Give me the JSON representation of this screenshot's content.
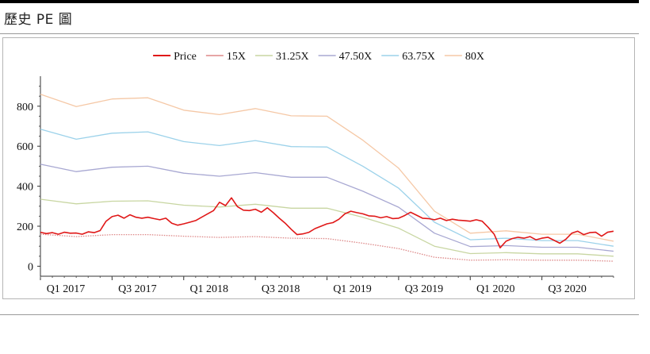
{
  "page": {
    "section_title": "歷史 PE 圖"
  },
  "chart_data": {
    "type": "line",
    "title": "",
    "xlabel": "",
    "ylabel": "",
    "x_range": [
      0,
      48
    ],
    "ylim": [
      -50,
      950
    ],
    "y_ticks": [
      0,
      200,
      400,
      600,
      800
    ],
    "x_ticks": [
      {
        "label": "Q1 2017",
        "x": 0
      },
      {
        "label": "Q3 2017",
        "x": 6
      },
      {
        "label": "Q1 2018",
        "x": 12
      },
      {
        "label": "Q3 2018",
        "x": 18
      },
      {
        "label": "Q1 2019",
        "x": 24
      },
      {
        "label": "Q3 2019",
        "x": 30
      },
      {
        "label": "Q1 2020",
        "x": 36
      },
      {
        "label": "Q3 2020",
        "x": 42
      }
    ],
    "legend_position": "top-center",
    "series": [
      {
        "name": "Price",
        "color": "#e01818",
        "style": "price",
        "points": [
          [
            0,
            170
          ],
          [
            0.5,
            163
          ],
          [
            1,
            168
          ],
          [
            1.5,
            160
          ],
          [
            2,
            170
          ],
          [
            2.5,
            165
          ],
          [
            3,
            166
          ],
          [
            3.5,
            160
          ],
          [
            4,
            172
          ],
          [
            4.5,
            168
          ],
          [
            5,
            178
          ],
          [
            5.5,
            225
          ],
          [
            6,
            248
          ],
          [
            6.5,
            255
          ],
          [
            7,
            240
          ],
          [
            7.5,
            257
          ],
          [
            8,
            245
          ],
          [
            8.5,
            240
          ],
          [
            9,
            245
          ],
          [
            9.5,
            238
          ],
          [
            10,
            232
          ],
          [
            10.5,
            240
          ],
          [
            11,
            215
          ],
          [
            11.5,
            205
          ],
          [
            12,
            212
          ],
          [
            12.5,
            220
          ],
          [
            13,
            228
          ],
          [
            13.5,
            245
          ],
          [
            14,
            262
          ],
          [
            14.5,
            278
          ],
          [
            15,
            320
          ],
          [
            15.5,
            303
          ],
          [
            16,
            342
          ],
          [
            16.5,
            298
          ],
          [
            17,
            280
          ],
          [
            17.5,
            278
          ],
          [
            18,
            285
          ],
          [
            18.5,
            270
          ],
          [
            19,
            292
          ],
          [
            19.5,
            268
          ],
          [
            20,
            240
          ],
          [
            20.5,
            215
          ],
          [
            21,
            185
          ],
          [
            21.5,
            158
          ],
          [
            22,
            162
          ],
          [
            22.5,
            170
          ],
          [
            23,
            188
          ],
          [
            23.5,
            200
          ],
          [
            24,
            212
          ],
          [
            24.5,
            218
          ],
          [
            25,
            235
          ],
          [
            25.5,
            262
          ],
          [
            26,
            275
          ],
          [
            26.5,
            268
          ],
          [
            27,
            262
          ],
          [
            27.5,
            252
          ],
          [
            28,
            250
          ],
          [
            28.5,
            242
          ],
          [
            29,
            248
          ],
          [
            29.5,
            238
          ],
          [
            30,
            240
          ],
          [
            30.5,
            253
          ],
          [
            31,
            270
          ],
          [
            31.5,
            255
          ],
          [
            32,
            240
          ],
          [
            32.5,
            238
          ],
          [
            33,
            232
          ],
          [
            33.5,
            240
          ],
          [
            34,
            228
          ],
          [
            34.5,
            235
          ],
          [
            35,
            230
          ],
          [
            35.5,
            228
          ],
          [
            36,
            225
          ],
          [
            36.5,
            232
          ],
          [
            37,
            225
          ],
          [
            37.5,
            195
          ],
          [
            38,
            160
          ],
          [
            38.5,
            92
          ],
          [
            39,
            125
          ],
          [
            39.5,
            138
          ],
          [
            40,
            145
          ],
          [
            40.5,
            140
          ],
          [
            41,
            148
          ],
          [
            41.5,
            132
          ],
          [
            42,
            140
          ],
          [
            42.5,
            145
          ],
          [
            43,
            130
          ],
          [
            43.5,
            115
          ],
          [
            44,
            135
          ],
          [
            44.5,
            165
          ],
          [
            45,
            175
          ],
          [
            45.5,
            158
          ],
          [
            46,
            168
          ],
          [
            46.5,
            170
          ],
          [
            47,
            150
          ],
          [
            47.5,
            170
          ],
          [
            48,
            175
          ]
        ]
      },
      {
        "name": "15X",
        "color": "#dd8888",
        "style": "dotted",
        "points": [
          [
            0,
            160
          ],
          [
            3,
            148
          ],
          [
            6,
            158
          ],
          [
            9,
            158
          ],
          [
            12,
            150
          ],
          [
            15,
            144
          ],
          [
            18,
            148
          ],
          [
            21,
            140
          ],
          [
            24,
            138
          ],
          [
            27,
            115
          ],
          [
            30,
            88
          ],
          [
            33,
            45
          ],
          [
            36,
            30
          ],
          [
            39,
            32
          ],
          [
            42,
            30
          ],
          [
            45,
            30
          ],
          [
            48,
            25
          ]
        ]
      },
      {
        "name": "31.25X",
        "color": "#c8d6a2",
        "style": "solid",
        "points": [
          [
            0,
            335
          ],
          [
            3,
            312
          ],
          [
            6,
            325
          ],
          [
            9,
            327
          ],
          [
            12,
            305
          ],
          [
            15,
            296
          ],
          [
            18,
            310
          ],
          [
            21,
            290
          ],
          [
            24,
            290
          ],
          [
            27,
            245
          ],
          [
            30,
            190
          ],
          [
            33,
            100
          ],
          [
            36,
            63
          ],
          [
            39,
            68
          ],
          [
            42,
            62
          ],
          [
            45,
            62
          ],
          [
            48,
            50
          ]
        ]
      },
      {
        "name": "47.50X",
        "color": "#a8a8d2",
        "style": "solid",
        "points": [
          [
            0,
            510
          ],
          [
            3,
            473
          ],
          [
            6,
            495
          ],
          [
            9,
            500
          ],
          [
            12,
            465
          ],
          [
            15,
            450
          ],
          [
            18,
            468
          ],
          [
            21,
            445
          ],
          [
            24,
            445
          ],
          [
            27,
            375
          ],
          [
            30,
            295
          ],
          [
            33,
            165
          ],
          [
            36,
            98
          ],
          [
            39,
            103
          ],
          [
            42,
            95
          ],
          [
            45,
            95
          ],
          [
            48,
            75
          ]
        ]
      },
      {
        "name": "63.75X",
        "color": "#9cd2ea",
        "style": "solid",
        "points": [
          [
            0,
            685
          ],
          [
            3,
            635
          ],
          [
            6,
            665
          ],
          [
            9,
            672
          ],
          [
            12,
            623
          ],
          [
            15,
            603
          ],
          [
            18,
            628
          ],
          [
            21,
            598
          ],
          [
            24,
            596
          ],
          [
            27,
            500
          ],
          [
            30,
            390
          ],
          [
            33,
            220
          ],
          [
            36,
            132
          ],
          [
            39,
            140
          ],
          [
            42,
            128
          ],
          [
            45,
            128
          ],
          [
            48,
            100
          ]
        ]
      },
      {
        "name": "80X",
        "color": "#f5c8a6",
        "style": "solid",
        "points": [
          [
            0,
            860
          ],
          [
            3,
            798
          ],
          [
            6,
            836
          ],
          [
            9,
            842
          ],
          [
            12,
            780
          ],
          [
            15,
            758
          ],
          [
            18,
            788
          ],
          [
            21,
            752
          ],
          [
            24,
            750
          ],
          [
            27,
            630
          ],
          [
            30,
            490
          ],
          [
            33,
            275
          ],
          [
            36,
            165
          ],
          [
            39,
            177
          ],
          [
            42,
            160
          ],
          [
            45,
            160
          ],
          [
            48,
            125
          ]
        ]
      }
    ]
  }
}
